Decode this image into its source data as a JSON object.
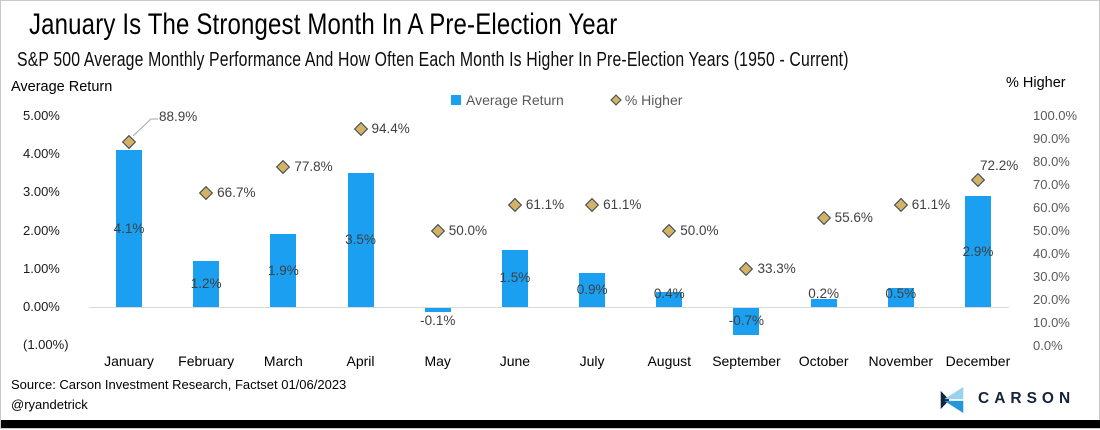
{
  "header": {
    "title": "January Is The Strongest Month In A Pre-Election Year",
    "subtitle": "S&P 500 Average Monthly Performance And How Often Each Month Is Higher In Pre-Election Years (1950 - Current)"
  },
  "legend": {
    "items": [
      {
        "label": "Average Return",
        "marker": "square"
      },
      {
        "label": "% Higher",
        "marker": "diamond"
      }
    ]
  },
  "axes": {
    "left_title": "Average Return",
    "right_title": "% Higher",
    "left_ticks": [
      "5.00%",
      "4.00%",
      "3.00%",
      "2.00%",
      "1.00%",
      "0.00%",
      "(1.00%)"
    ],
    "right_ticks": [
      "100.0%",
      "90.0%",
      "80.0%",
      "70.0%",
      "60.0%",
      "50.0%",
      "40.0%",
      "30.0%",
      "20.0%",
      "10.0%",
      "0.0%"
    ]
  },
  "footer": {
    "source": "Source: Carson Investment Research, Factset 01/06/2023",
    "handle": "@ryandetrick",
    "logo_text": "CARSON"
  },
  "colors": {
    "bar": "#1b9ff1",
    "diamond_fill": "#d3b264",
    "diamond_border": "#36465a",
    "data_label": "#404040",
    "grid": "#d9d9d9",
    "leader_line": "#a6a6a6",
    "navy": "#15243b",
    "logo_light": "#9ad1ee",
    "logo_mid": "#2497dc",
    "logo_dark": "#0f2540"
  },
  "chart_data": {
    "type": "combo-bar-scatter",
    "title": "January Is The Strongest Month In A Pre-Election Year",
    "subtitle": "S&P 500 Average Monthly Performance And How Often Each Month Is Higher In Pre-Election Years (1950 - Current)",
    "categories": [
      "January",
      "February",
      "March",
      "April",
      "May",
      "June",
      "July",
      "August",
      "September",
      "October",
      "November",
      "December"
    ],
    "series": [
      {
        "name": "Average Return",
        "type": "bar",
        "axis": "left",
        "values": [
          4.1,
          1.2,
          1.9,
          3.5,
          -0.1,
          1.5,
          0.9,
          0.4,
          -0.7,
          0.2,
          0.5,
          2.9
        ],
        "labels": [
          "4.1%",
          "1.2%",
          "1.9%",
          "3.5%",
          "-0.1%",
          "1.5%",
          "0.9%",
          "0.4%",
          "-0.7%",
          "0.2%",
          "0.5%",
          "2.9%"
        ]
      },
      {
        "name": "% Higher",
        "type": "scatter",
        "marker": "diamond",
        "axis": "right",
        "values": [
          88.9,
          66.7,
          77.8,
          94.4,
          50.0,
          61.1,
          61.1,
          50.0,
          33.3,
          55.6,
          61.1,
          72.2
        ],
        "labels": [
          "88.9%",
          "66.7%",
          "77.8%",
          "94.4%",
          "50.0%",
          "61.1%",
          "61.1%",
          "50.0%",
          "33.3%",
          "55.6%",
          "61.1%",
          "72.2%"
        ]
      }
    ],
    "left_axis": {
      "title": "Average Return",
      "min": -1,
      "max": 5,
      "tick_step": 1
    },
    "right_axis": {
      "title": "% Higher",
      "min": 0,
      "max": 100,
      "tick_step": 10
    },
    "grid": "horizontal zero line only",
    "legend_position": "top-center"
  }
}
